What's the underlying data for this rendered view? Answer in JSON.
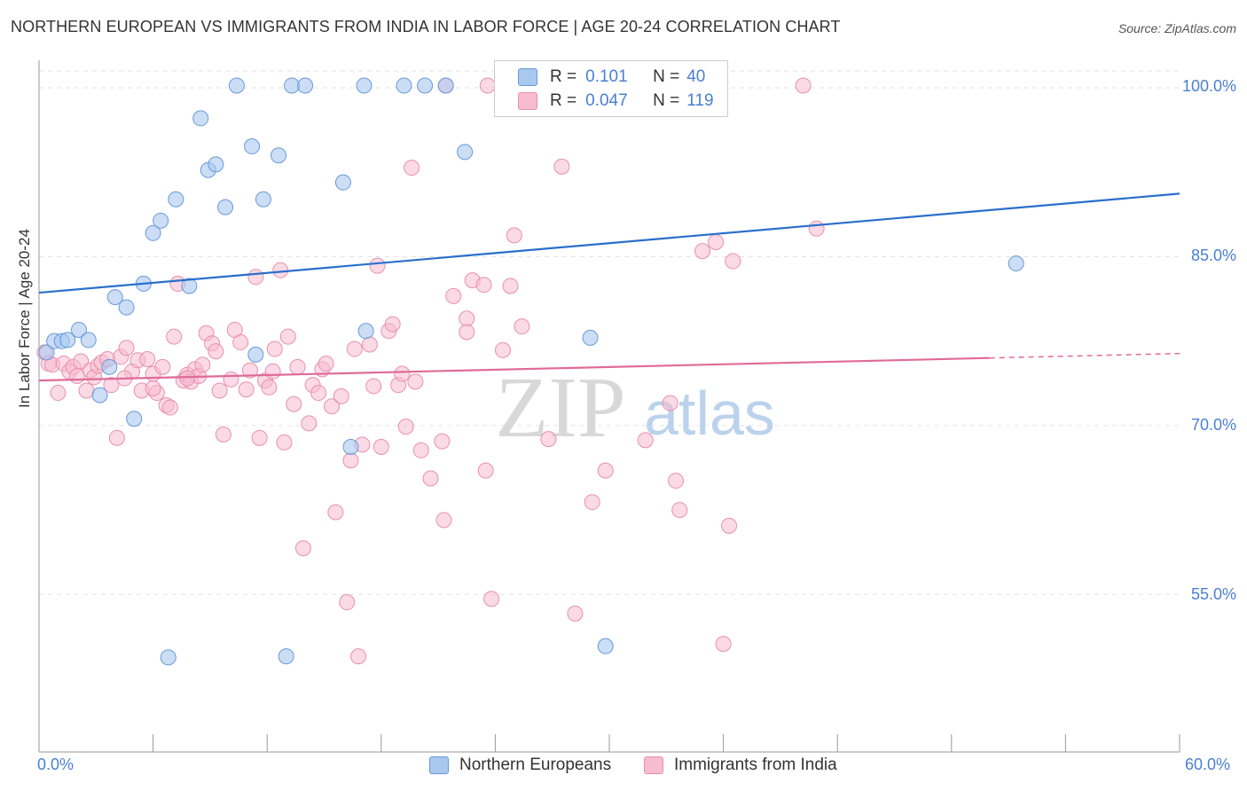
{
  "header": {
    "title": "NORTHERN EUROPEAN VS IMMIGRANTS FROM INDIA IN LABOR FORCE | AGE 20-24 CORRELATION CHART",
    "source": "Source: ZipAtlas.com"
  },
  "watermark": {
    "zip": "ZIP",
    "atlas": "atlas"
  },
  "legend_top": {
    "r_label": "R =",
    "n_label": "N =",
    "series1": {
      "r": "0.101",
      "n": "40"
    },
    "series2": {
      "r": "0.047",
      "n": "119"
    }
  },
  "axis": {
    "ylabel": "In Labor Force | Age 20-24",
    "y_ticks": [
      "100.0%",
      "85.0%",
      "70.0%",
      "55.0%"
    ],
    "x_min_label": "0.0%",
    "x_max_label": "60.0%"
  },
  "bottom_legend": {
    "series1": "Northern Europeans",
    "series2": "Immigrants from India"
  },
  "colors": {
    "blue_fill": "#a8c8f0",
    "blue_stroke": "#6a9ad8",
    "blue_line": "#2a6fcc",
    "pink_fill": "#f7bcd0",
    "pink_stroke": "#e890ae",
    "pink_line": "#e06a98",
    "tick_text": "#4a7fd4"
  },
  "chart_data": {
    "type": "scatter",
    "title": "NORTHERN EUROPEAN VS IMMIGRANTS FROM INDIA IN LABOR FORCE | AGE 20-24 CORRELATION CHART",
    "xlabel": "",
    "ylabel": "In Labor Force | Age 20-24",
    "xlim": [
      0,
      60
    ],
    "ylim": [
      41,
      101.5
    ],
    "y_ticks": [
      55,
      70,
      85,
      100
    ],
    "grid": true,
    "legend_position": "top-center",
    "series": [
      {
        "name": "Northern Europeans",
        "r": 0.101,
        "n": 40,
        "trend": [
          [
            0,
            81.8
          ],
          [
            60,
            90.6
          ]
        ],
        "points": [
          [
            0.4,
            76.5
          ],
          [
            0.8,
            77.5
          ],
          [
            1.2,
            77.5
          ],
          [
            1.5,
            77.6
          ],
          [
            2.1,
            78.5
          ],
          [
            2.6,
            77.6
          ],
          [
            3.2,
            72.7
          ],
          [
            3.7,
            75.2
          ],
          [
            4.0,
            81.4
          ],
          [
            4.6,
            80.5
          ],
          [
            5.0,
            70.6
          ],
          [
            5.5,
            82.6
          ],
          [
            6.0,
            87.1
          ],
          [
            6.4,
            88.2
          ],
          [
            7.2,
            90.1
          ],
          [
            7.9,
            82.4
          ],
          [
            8.5,
            97.3
          ],
          [
            8.9,
            92.7
          ],
          [
            9.3,
            93.2
          ],
          [
            9.8,
            89.4
          ],
          [
            10.4,
            100.2
          ],
          [
            11.2,
            94.8
          ],
          [
            11.4,
            76.3
          ],
          [
            11.8,
            90.1
          ],
          [
            12.6,
            94.0
          ],
          [
            13.0,
            49.5
          ],
          [
            13.3,
            100.2
          ],
          [
            14.0,
            100.2
          ],
          [
            16.0,
            91.6
          ],
          [
            16.4,
            68.1
          ],
          [
            17.2,
            78.4
          ],
          [
            17.1,
            100.2
          ],
          [
            19.2,
            100.2
          ],
          [
            20.3,
            100.2
          ],
          [
            21.4,
            100.2
          ],
          [
            22.4,
            94.3
          ],
          [
            29.0,
            77.8
          ],
          [
            29.8,
            50.4
          ],
          [
            51.4,
            84.4
          ],
          [
            6.8,
            49.4
          ]
        ]
      },
      {
        "name": "Immigrants from India",
        "r": 0.047,
        "n": 119,
        "trend": [
          [
            0,
            74.0
          ],
          [
            50.0,
            76.0
          ]
        ],
        "trend_dashed_to": [
          60,
          76.4
        ],
        "points": [
          [
            0.3,
            76.5
          ],
          [
            0.5,
            75.5
          ],
          [
            0.7,
            75.4
          ],
          [
            1.0,
            72.9
          ],
          [
            1.3,
            75.5
          ],
          [
            1.6,
            74.8
          ],
          [
            1.8,
            75.2
          ],
          [
            2.0,
            74.4
          ],
          [
            2.2,
            75.7
          ],
          [
            2.5,
            73.1
          ],
          [
            2.7,
            74.9
          ],
          [
            2.9,
            74.3
          ],
          [
            3.1,
            75.3
          ],
          [
            3.3,
            75.6
          ],
          [
            3.6,
            75.9
          ],
          [
            3.8,
            73.6
          ],
          [
            4.1,
            68.9
          ],
          [
            4.3,
            76.1
          ],
          [
            4.6,
            76.9
          ],
          [
            4.9,
            74.8
          ],
          [
            5.2,
            75.8
          ],
          [
            5.4,
            73.1
          ],
          [
            5.7,
            75.9
          ],
          [
            6.0,
            74.6
          ],
          [
            6.2,
            72.9
          ],
          [
            6.5,
            75.2
          ],
          [
            6.7,
            71.8
          ],
          [
            6.9,
            71.6
          ],
          [
            7.1,
            77.9
          ],
          [
            7.3,
            82.6
          ],
          [
            7.6,
            74.0
          ],
          [
            7.8,
            74.5
          ],
          [
            8.0,
            73.9
          ],
          [
            8.2,
            75.0
          ],
          [
            8.4,
            74.4
          ],
          [
            8.6,
            75.4
          ],
          [
            8.8,
            78.2
          ],
          [
            9.1,
            77.3
          ],
          [
            9.3,
            76.6
          ],
          [
            9.5,
            73.1
          ],
          [
            9.7,
            69.2
          ],
          [
            10.1,
            74.1
          ],
          [
            10.3,
            78.5
          ],
          [
            10.6,
            77.4
          ],
          [
            10.9,
            73.2
          ],
          [
            11.1,
            74.9
          ],
          [
            11.4,
            83.2
          ],
          [
            11.6,
            68.9
          ],
          [
            11.9,
            74.0
          ],
          [
            12.1,
            73.4
          ],
          [
            12.4,
            76.8
          ],
          [
            12.7,
            83.8
          ],
          [
            12.9,
            68.5
          ],
          [
            13.1,
            77.9
          ],
          [
            13.4,
            71.9
          ],
          [
            13.6,
            75.2
          ],
          [
            13.9,
            59.1
          ],
          [
            14.2,
            70.2
          ],
          [
            14.4,
            73.6
          ],
          [
            14.7,
            72.9
          ],
          [
            14.9,
            75.0
          ],
          [
            15.1,
            75.5
          ],
          [
            15.4,
            71.7
          ],
          [
            15.6,
            62.3
          ],
          [
            15.9,
            72.6
          ],
          [
            16.2,
            54.3
          ],
          [
            16.4,
            66.9
          ],
          [
            16.6,
            76.8
          ],
          [
            16.8,
            49.5
          ],
          [
            17.0,
            68.3
          ],
          [
            17.4,
            77.2
          ],
          [
            17.6,
            73.5
          ],
          [
            17.8,
            84.2
          ],
          [
            18.0,
            68.1
          ],
          [
            18.4,
            78.4
          ],
          [
            18.6,
            79.0
          ],
          [
            18.9,
            73.6
          ],
          [
            19.1,
            74.6
          ],
          [
            19.3,
            69.9
          ],
          [
            19.6,
            92.9
          ],
          [
            19.8,
            73.9
          ],
          [
            20.1,
            67.8
          ],
          [
            20.6,
            65.3
          ],
          [
            21.2,
            68.6
          ],
          [
            21.3,
            61.6
          ],
          [
            21.8,
            81.5
          ],
          [
            22.5,
            79.5
          ],
          [
            22.5,
            78.3
          ],
          [
            22.8,
            82.9
          ],
          [
            23.4,
            82.5
          ],
          [
            23.5,
            66.0
          ],
          [
            23.8,
            54.6
          ],
          [
            24.4,
            76.7
          ],
          [
            24.8,
            82.4
          ],
          [
            25.0,
            86.9
          ],
          [
            25.4,
            78.8
          ],
          [
            26.1,
            100.2
          ],
          [
            26.8,
            68.8
          ],
          [
            27.5,
            93.0
          ],
          [
            28.2,
            53.3
          ],
          [
            29.1,
            63.2
          ],
          [
            29.8,
            66.0
          ],
          [
            31.9,
            68.7
          ],
          [
            33.2,
            72.0
          ],
          [
            33.5,
            65.1
          ],
          [
            33.7,
            62.5
          ],
          [
            34.9,
            85.5
          ],
          [
            35.6,
            86.3
          ],
          [
            36.3,
            61.1
          ],
          [
            36.5,
            84.6
          ],
          [
            36.0,
            50.6
          ],
          [
            40.2,
            100.2
          ],
          [
            40.9,
            87.5
          ],
          [
            21.4,
            100.2
          ],
          [
            23.6,
            100.2
          ],
          [
            6.0,
            73.3
          ],
          [
            4.5,
            74.2
          ],
          [
            7.8,
            74.2
          ],
          [
            12.3,
            74.8
          ]
        ]
      }
    ]
  }
}
